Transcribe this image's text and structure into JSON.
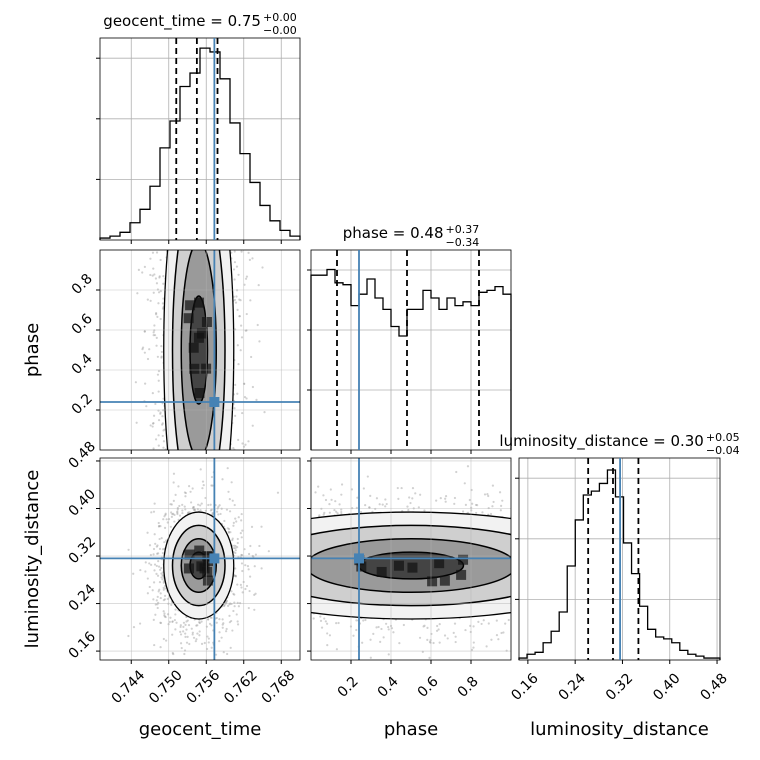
{
  "chart_data": {
    "type": "corner",
    "truth_color": "#4682b4",
    "hist_color": "#000000",
    "grid": true,
    "parameters": [
      {
        "name": "geocent_time",
        "range": [
          0.739,
          0.771
        ],
        "ticks": [
          "0.744",
          "0.750",
          "0.756",
          "0.762",
          "0.768"
        ],
        "tick_values": [
          0.744,
          0.75,
          0.756,
          0.762,
          0.768
        ],
        "truth": 0.7573,
        "title": {
          "main": "geocent_time = 0.75",
          "upper": "+0.00",
          "lower": "−0.00"
        },
        "quantiles": [
          0.7512,
          0.7545,
          0.7578
        ],
        "hist": [
          0.01,
          0.02,
          0.04,
          0.09,
          0.16,
          0.28,
          0.48,
          0.62,
          0.8,
          0.87,
          1.0,
          0.98,
          0.84,
          0.61,
          0.45,
          0.3,
          0.18,
          0.1,
          0.05,
          0.02
        ]
      },
      {
        "name": "phase",
        "range": [
          0.0,
          1.0
        ],
        "ticks": [
          "0.2",
          "0.4",
          "0.6",
          "0.8"
        ],
        "tick_values": [
          0.2,
          0.4,
          0.6,
          0.8
        ],
        "truth": 0.24,
        "title": {
          "main": "phase = 0.48",
          "upper": "+0.37",
          "lower": "−0.34"
        },
        "quantiles": [
          0.13,
          0.48,
          0.84
        ],
        "hist": [
          0.92,
          0.92,
          0.95,
          0.88,
          0.87,
          0.76,
          0.82,
          0.9,
          0.8,
          0.74,
          0.65,
          0.6,
          0.74,
          0.74,
          0.84,
          0.8,
          0.74,
          0.8,
          0.76,
          0.78,
          0.76,
          0.83,
          0.84,
          0.86,
          0.82
        ]
      },
      {
        "name": "luminosity_distance",
        "range": [
          0.145,
          0.485
        ],
        "ticks": [
          "0.16",
          "0.24",
          "0.32",
          "0.40",
          "0.48"
        ],
        "tick_values": [
          0.16,
          0.24,
          0.32,
          0.4,
          0.48
        ],
        "truth": 0.316,
        "title": {
          "main": "luminosity_distance = 0.30",
          "upper": "+0.05",
          "lower": "−0.04"
        },
        "quantiles": [
          0.262,
          0.304,
          0.347
        ],
        "hist": [
          0.01,
          0.03,
          0.04,
          0.09,
          0.15,
          0.25,
          0.49,
          0.73,
          0.86,
          0.88,
          0.92,
          0.99,
          0.85,
          0.61,
          0.45,
          0.28,
          0.16,
          0.12,
          0.11,
          0.09,
          0.05,
          0.03,
          0.02,
          0.01,
          0.01
        ]
      }
    ]
  }
}
